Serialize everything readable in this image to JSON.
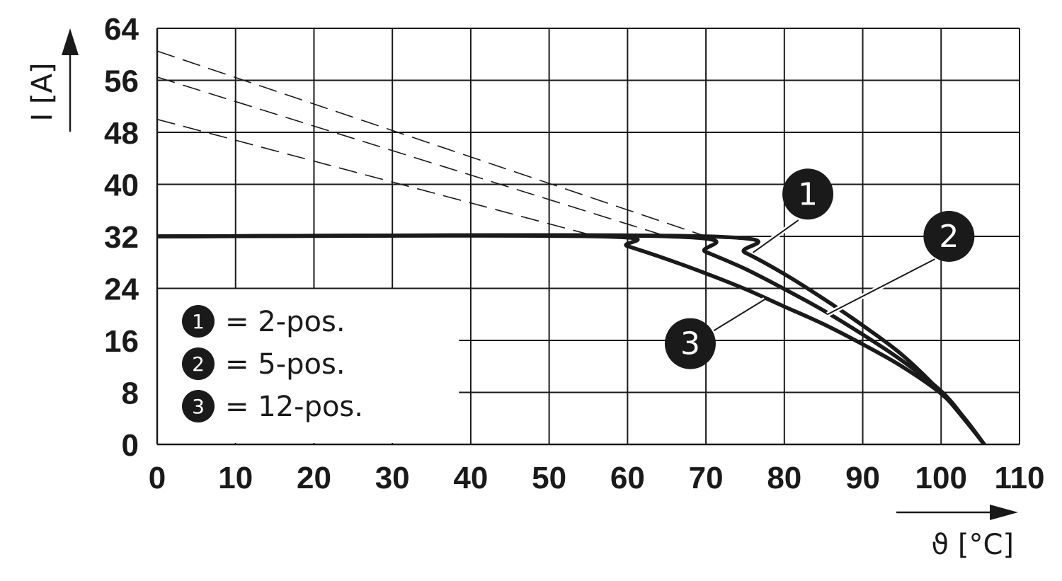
{
  "chart_data": {
    "type": "line",
    "title": "",
    "xlabel": "ϑ [°C]",
    "ylabel": "I [A]",
    "xlim": [
      0,
      110
    ],
    "ylim": [
      0,
      64
    ],
    "x_ticks": [
      0,
      10,
      20,
      30,
      40,
      50,
      60,
      70,
      80,
      90,
      100,
      110
    ],
    "y_ticks": [
      0,
      8,
      16,
      24,
      32,
      40,
      48,
      56,
      64
    ],
    "grid": true,
    "legend_position": "bottom-left",
    "series": [
      {
        "marker": "1",
        "legend_label": "= 2-pos.",
        "points": [
          [
            0,
            32
          ],
          [
            70,
            32
          ],
          [
            75,
            29.5
          ],
          [
            80,
            26.2
          ],
          [
            85,
            22.4
          ],
          [
            90,
            18.3
          ],
          [
            95,
            13.8
          ],
          [
            100,
            8
          ],
          [
            103,
            3.8
          ],
          [
            105.5,
            0
          ]
        ],
        "extrapolation": [
          [
            0,
            60.5
          ],
          [
            70,
            32
          ]
        ]
      },
      {
        "marker": "2",
        "legend_label": "= 5-pos.",
        "points": [
          [
            0,
            32
          ],
          [
            65,
            32
          ],
          [
            70,
            29.6
          ],
          [
            75,
            27
          ],
          [
            80,
            23.9
          ],
          [
            85,
            20.6
          ],
          [
            90,
            16.9
          ],
          [
            95,
            12.9
          ],
          [
            100,
            8.2
          ],
          [
            103,
            4
          ],
          [
            105.5,
            0
          ]
        ],
        "extrapolation": [
          [
            0,
            56.5
          ],
          [
            65,
            32
          ]
        ]
      },
      {
        "marker": "3",
        "legend_label": "= 12-pos.",
        "points": [
          [
            0,
            32
          ],
          [
            56,
            32
          ],
          [
            60,
            30.5
          ],
          [
            65,
            28.5
          ],
          [
            70,
            26.3
          ],
          [
            75,
            23.9
          ],
          [
            80,
            21.2
          ],
          [
            85,
            18.5
          ],
          [
            90,
            15.4
          ],
          [
            95,
            12
          ],
          [
            100,
            7.8
          ],
          [
            103,
            4
          ],
          [
            105.5,
            0
          ]
        ],
        "extrapolation": [
          [
            0,
            50
          ],
          [
            56,
            32
          ]
        ]
      }
    ],
    "callouts": [
      {
        "label": "1",
        "circle": [
          83,
          38.5
        ],
        "line_from": [
          81.8,
          34.5
        ],
        "line_to": [
          76,
          29.5
        ]
      },
      {
        "label": "2",
        "circle": [
          101,
          32
        ],
        "line_from": [
          99.2,
          28.5
        ],
        "line_to": [
          85.5,
          20
        ]
      },
      {
        "label": "3",
        "circle": [
          68,
          15.5
        ],
        "line_from": [
          71,
          17.5
        ],
        "line_to": [
          77.5,
          22.3
        ]
      }
    ]
  }
}
